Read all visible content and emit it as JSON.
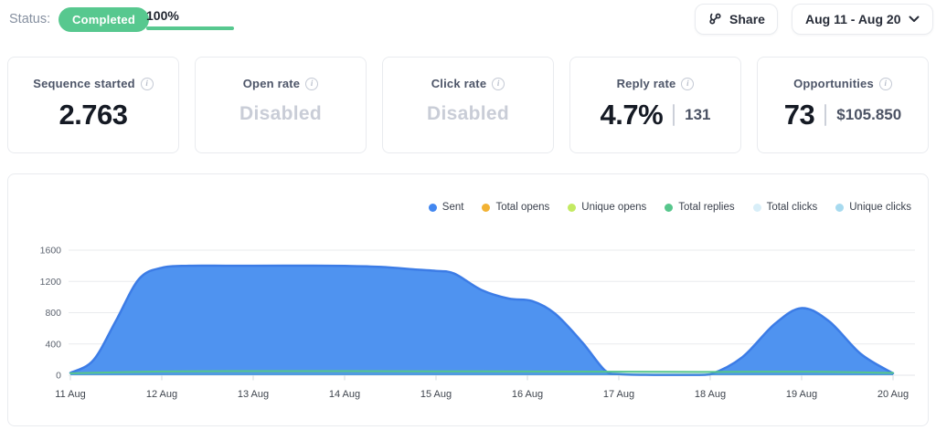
{
  "header": {
    "status_label": "Status:",
    "status_badge": "Completed",
    "progress_percent": "100%",
    "share_label": "Share",
    "date_range": "Aug 11 - Aug 20"
  },
  "stats": [
    {
      "title": "Sequence started",
      "value": "2.763"
    },
    {
      "title": "Open rate",
      "value": "Disabled",
      "disabled": true
    },
    {
      "title": "Click rate",
      "value": "Disabled",
      "disabled": true
    },
    {
      "title": "Reply rate",
      "value": "4.7%",
      "secondary": "131"
    },
    {
      "title": "Opportunities",
      "value": "73",
      "secondary": "$105.850"
    }
  ],
  "chart_data": {
    "type": "area",
    "title": "",
    "xlabel": "",
    "ylabel": "",
    "x_labels": [
      "11 Aug",
      "12 Aug",
      "13 Aug",
      "14 Aug",
      "15 Aug",
      "16 Aug",
      "17 Aug",
      "18 Aug",
      "19 Aug",
      "20 Aug"
    ],
    "ylim": [
      0,
      1600
    ],
    "yticks": [
      0,
      400,
      800,
      1200,
      1600
    ],
    "grid": true,
    "legend_position": "top-right",
    "legend": [
      {
        "name": "Sent",
        "color": "#4287f0"
      },
      {
        "name": "Total opens",
        "color": "#f2b233"
      },
      {
        "name": "Unique opens",
        "color": "#c3ea62"
      },
      {
        "name": "Total replies",
        "color": "#57c68c"
      },
      {
        "name": "Total clicks",
        "color": "#d8eef8"
      },
      {
        "name": "Unique clicks",
        "color": "#a7daef"
      }
    ],
    "series": [
      {
        "name": "Sent",
        "stroke": "#3c7ce6",
        "fill": "#4f93f0",
        "fill_opacity": 1,
        "x": [
          0,
          0.25,
          0.5,
          0.75,
          1,
          1.3,
          1.7,
          2,
          2.5,
          3,
          3.4,
          3.8,
          4,
          4.2,
          4.5,
          4.8,
          5.05,
          5.3,
          5.6,
          5.85,
          6,
          6.4,
          6.8,
          7,
          7.35,
          7.7,
          8,
          8.3,
          8.65,
          9
        ],
        "values": [
          30,
          190,
          700,
          1230,
          1375,
          1400,
          1400,
          1400,
          1402,
          1398,
          1385,
          1350,
          1335,
          1300,
          1090,
          980,
          950,
          790,
          420,
          60,
          15,
          5,
          5,
          12,
          230,
          650,
          858,
          690,
          270,
          25
        ]
      },
      {
        "name": "Total replies",
        "stroke": "#57c68c",
        "fill": "#57c68c",
        "fill_opacity": 0.16,
        "x": [
          0,
          1,
          2,
          3,
          4,
          5,
          6,
          7,
          8,
          9
        ],
        "values": [
          25,
          48,
          52,
          52,
          50,
          48,
          45,
          42,
          46,
          30
        ]
      }
    ],
    "x_unit": "days offset from 11 Aug"
  }
}
